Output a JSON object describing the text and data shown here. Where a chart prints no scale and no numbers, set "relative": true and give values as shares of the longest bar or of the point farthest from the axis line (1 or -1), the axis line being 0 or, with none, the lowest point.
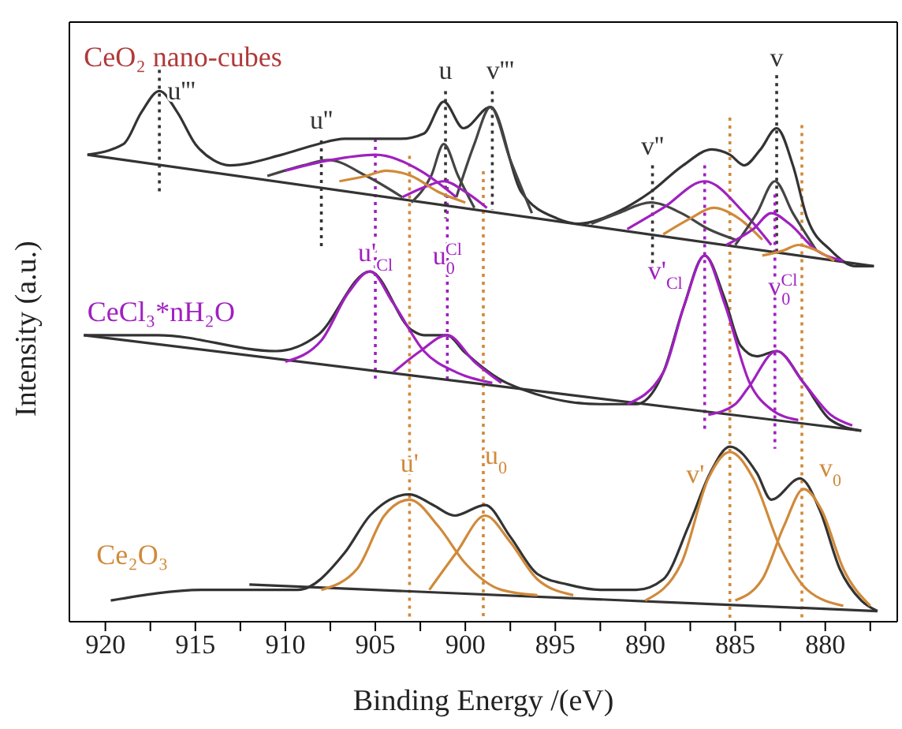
{
  "chart_data": {
    "type": "line",
    "relative": true,
    "xlabel": "Binding Energy /(eV)",
    "ylabel": "Intensity (a.u.)",
    "xlim": [
      922,
      876
    ],
    "xticks": [
      920,
      {
        "value": 917.5,
        "label": null
      },
      915,
      {
        "value": 912.5,
        "label": null
      },
      910,
      {
        "value": 907.5,
        "label": null
      },
      905,
      {
        "value": 902.5,
        "label": null
      },
      900,
      {
        "value": 897.5,
        "label": null
      },
      895,
      {
        "value": 892.5,
        "label": null
      },
      890,
      {
        "value": 887.5,
        "label": null
      },
      885,
      {
        "value": 882.5,
        "label": null
      },
      880,
      {
        "value": 877.5,
        "label": null
      }
    ],
    "tick_labels": "x",
    "legend": false,
    "marker": "none",
    "line_style": "solid",
    "series": [
      {
        "color": "#333333",
        "x": [
          921.0,
          919.0,
          918.0,
          917.0,
          916.0,
          915.0,
          914.0,
          913.1,
          910.2,
          908.2,
          906.7,
          905.0,
          903.6,
          902.3,
          901.2,
          900.1,
          898.6,
          896.9,
          894.9,
          893.7,
          891.7,
          889.7,
          887.9,
          886.3,
          885.3,
          884.5,
          883.6,
          882.7,
          881.8,
          881.0,
          879.7,
          878.3,
          877.3
        ],
        "values": [
          0.88,
          0.9,
          0.96,
          1.0,
          0.96,
          0.9,
          0.87,
          0.86,
          0.88,
          0.9,
          0.91,
          0.91,
          0.91,
          0.92,
          0.98,
          0.93,
          0.97,
          0.81,
          0.76,
          0.75,
          0.77,
          0.81,
          0.86,
          0.89,
          0.88,
          0.86,
          0.89,
          0.93,
          0.86,
          0.76,
          0.7,
          0.67,
          0.67
        ]
      },
      {
        "color": "#333333",
        "x": [
          921.0,
          877.3
        ],
        "values": [
          0.88,
          0.67
        ]
      },
      {
        "color": "#444444",
        "x": [
          911,
          909,
          907.6,
          905.5,
          903.5
        ],
        "values": [
          0.84,
          0.86,
          0.87,
          0.84,
          0.8
        ]
      },
      {
        "color": "#444444",
        "x": [
          903,
          901.9,
          901.2,
          900.4,
          899.5
        ],
        "values": [
          0.79,
          0.84,
          0.9,
          0.84,
          0.78
        ]
      },
      {
        "color": "#444444",
        "x": [
          900.5,
          899.5,
          898.6,
          897.5,
          896.3
        ],
        "values": [
          0.8,
          0.9,
          0.97,
          0.87,
          0.77
        ]
      },
      {
        "color": "#a020c0",
        "x": [
          910,
          907.5,
          905,
          902.5,
          900.5
        ],
        "values": [
          0.85,
          0.87,
          0.88,
          0.85,
          0.8
        ]
      },
      {
        "color": "#a020c0",
        "x": [
          903.5,
          902.2,
          901.2,
          900,
          898.8
        ],
        "values": [
          0.8,
          0.82,
          0.83,
          0.81,
          0.78
        ]
      },
      {
        "color": "#d08a3a",
        "x": [
          907,
          905.5,
          904.4,
          903,
          901.5,
          900
        ],
        "values": [
          0.83,
          0.84,
          0.85,
          0.84,
          0.81,
          0.79
        ]
      },
      {
        "color": "#444444",
        "x": [
          893,
          891.5,
          889.7,
          888,
          886.5,
          885
        ],
        "values": [
          0.75,
          0.77,
          0.79,
          0.77,
          0.74,
          0.72
        ]
      },
      {
        "color": "#a020c0",
        "x": [
          891,
          889,
          886.7,
          884.5,
          883
        ],
        "values": [
          0.74,
          0.78,
          0.83,
          0.77,
          0.71
        ]
      },
      {
        "color": "#d08a3a",
        "x": [
          889,
          887.5,
          886.2,
          884.8,
          883.5
        ],
        "values": [
          0.73,
          0.76,
          0.78,
          0.76,
          0.72
        ]
      },
      {
        "color": "#444444",
        "x": [
          885,
          883.8,
          882.8,
          881.8,
          880.5
        ],
        "values": [
          0.71,
          0.77,
          0.83,
          0.77,
          0.7
        ]
      },
      {
        "color": "#a020c0",
        "x": [
          885.5,
          884,
          883,
          882,
          880.5,
          879
        ],
        "values": [
          0.71,
          0.74,
          0.77,
          0.75,
          0.7,
          0.68
        ]
      },
      {
        "color": "#d08a3a",
        "x": [
          883.5,
          882.3,
          881.5,
          880.5,
          879.5
        ],
        "values": [
          0.69,
          0.7,
          0.71,
          0.7,
          0.68
        ]
      },
      {
        "color": "#333333",
        "x": [
          921.2,
          917.1,
          910.5,
          908.2,
          905.3,
          903.0,
          902.3,
          901.0,
          900.1,
          897.7,
          892.5,
          890.5,
          889.0,
          887.9,
          886.7,
          885.6,
          884.7,
          883.8,
          882.7,
          881.2,
          879.7,
          878.0
        ],
        "values": [
          0.54,
          0.54,
          0.51,
          0.54,
          0.66,
          0.55,
          0.54,
          0.54,
          0.51,
          0.45,
          0.41,
          0.41,
          0.47,
          0.59,
          0.69,
          0.61,
          0.52,
          0.5,
          0.51,
          0.45,
          0.38,
          0.36
        ]
      },
      {
        "color": "#333333",
        "x": [
          921.2,
          878.0
        ],
        "values": [
          0.54,
          0.36
        ]
      },
      {
        "color": "#a020c0",
        "x": [
          910,
          908,
          906.5,
          905.3,
          904,
          902.3,
          900.5,
          898.5
        ],
        "values": [
          0.49,
          0.53,
          0.62,
          0.66,
          0.6,
          0.51,
          0.47,
          0.45
        ]
      },
      {
        "color": "#a020c0",
        "x": [
          904,
          902.5,
          901,
          899.5,
          898
        ],
        "values": [
          0.47,
          0.51,
          0.54,
          0.49,
          0.45
        ]
      },
      {
        "color": "#a020c0",
        "x": [
          891,
          889,
          887.8,
          886.7,
          885.6,
          884.2,
          883,
          881.5
        ],
        "values": [
          0.41,
          0.47,
          0.6,
          0.69,
          0.6,
          0.45,
          0.4,
          0.38
        ]
      },
      {
        "color": "#a020c0",
        "x": [
          886.5,
          885,
          884.3,
          882.7,
          881.2,
          879.7,
          878.5
        ],
        "values": [
          0.39,
          0.41,
          0.44,
          0.51,
          0.45,
          0.39,
          0.37
        ]
      },
      {
        "color": "#333333",
        "x": [
          919.7,
          914.5,
          909.3,
          906.7,
          905.3,
          903.1,
          901.8,
          900.6,
          898.9,
          897.5,
          896.0,
          894.3,
          892.5,
          890.5,
          889.0,
          887.6,
          886.4,
          885.3,
          883.8,
          883.0,
          881.4,
          880.3,
          879.2,
          878.0,
          877.1
        ],
        "values": [
          0.04,
          0.06,
          0.06,
          0.13,
          0.2,
          0.24,
          0.22,
          0.2,
          0.22,
          0.16,
          0.09,
          0.07,
          0.06,
          0.06,
          0.08,
          0.18,
          0.28,
          0.33,
          0.28,
          0.23,
          0.27,
          0.21,
          0.1,
          0.04,
          0.02
        ]
      },
      {
        "color": "#333333",
        "x": [
          912,
          877.1
        ],
        "values": [
          0.07,
          0.02
        ]
      },
      {
        "color": "#d08a3a",
        "x": [
          908,
          906,
          904.5,
          903.1,
          901.5,
          900,
          898,
          896
        ],
        "values": [
          0.06,
          0.1,
          0.2,
          0.23,
          0.18,
          0.11,
          0.06,
          0.05
        ]
      },
      {
        "color": "#d08a3a",
        "x": [
          902,
          900.5,
          898.9,
          897.5,
          896,
          894
        ],
        "values": [
          0.06,
          0.13,
          0.2,
          0.15,
          0.08,
          0.05
        ]
      },
      {
        "color": "#d08a3a",
        "x": [
          890,
          888,
          886.5,
          885.3,
          884,
          882.5,
          881,
          879
        ],
        "values": [
          0.04,
          0.11,
          0.27,
          0.32,
          0.27,
          0.14,
          0.06,
          0.03
        ]
      },
      {
        "color": "#d08a3a",
        "x": [
          885,
          883.5,
          882.3,
          881.2,
          880.2,
          879,
          877.5
        ],
        "values": [
          0.04,
          0.08,
          0.18,
          0.25,
          0.21,
          0.1,
          0.03
        ]
      }
    ],
    "ref_lines": [
      {
        "axis": "x",
        "value": 917,
        "label": "u'''",
        "color": "#333333",
        "line_style": "dotted"
      },
      {
        "axis": "x",
        "value": 908,
        "label": "u''",
        "color": "#333333",
        "line_style": "dotted"
      },
      {
        "axis": "x",
        "value": 901.1,
        "label": "u",
        "color": "#333333",
        "line_style": "dotted"
      },
      {
        "axis": "x",
        "value": 898.5,
        "label": "v'''",
        "color": "#333333",
        "line_style": "dotted"
      },
      {
        "axis": "x",
        "value": 889.6,
        "label": "v''",
        "color": "#333333",
        "line_style": "dotted"
      },
      {
        "axis": "x",
        "value": 882.7,
        "label": "v",
        "color": "#333333",
        "line_style": "dotted"
      },
      {
        "axis": "x",
        "value": 905.0,
        "label": "u'$_{Cl}$",
        "color": "#a020c0",
        "line_style": "dotted"
      },
      {
        "axis": "x",
        "value": 901.0,
        "label": "u$_{0}$$^{Cl}$",
        "color": "#a020c0",
        "line_style": "dotted"
      },
      {
        "axis": "x",
        "value": 886.7,
        "label": "v'$_{Cl}$",
        "color": "#a020c0",
        "line_style": "dotted"
      },
      {
        "axis": "x",
        "value": 882.8,
        "label": "v$_{0}$$^{Cl}$",
        "color": "#a020c0",
        "line_style": "dotted"
      },
      {
        "axis": "x",
        "value": 903.1,
        "label": "u'",
        "color": "#d08a3a",
        "line_style": "dotted"
      },
      {
        "axis": "x",
        "value": 899.0,
        "label": "u$_{0}$",
        "color": "#d08a3a",
        "line_style": "dotted"
      },
      {
        "axis": "x",
        "value": 885.3,
        "label": "v'",
        "color": "#d08a3a",
        "line_style": "dotted"
      },
      {
        "axis": "x",
        "value": 881.3,
        "label": "v$_{0}$",
        "color": "#d08a3a",
        "line_style": "dotted"
      }
    ],
    "annotations": [
      "CeO₂ nano-cubes",
      "CeCl₃*nH₂O",
      "Ce₂O₃"
    ]
  }
}
